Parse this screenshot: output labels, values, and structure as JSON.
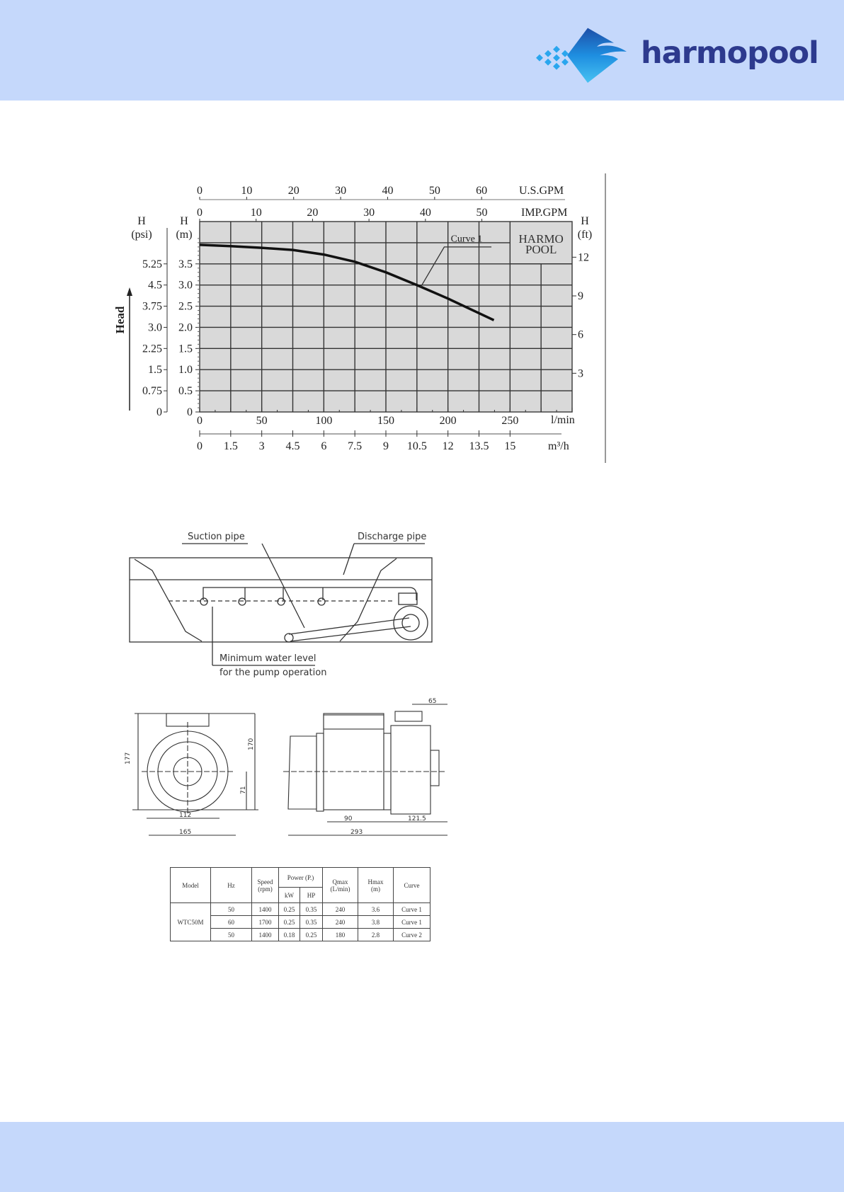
{
  "brand": {
    "name": "harmopool",
    "colors": {
      "header_bg": "#c5d8fb",
      "logo_text": "#2d3a8e",
      "logo_icon": "#1e88e5"
    }
  },
  "chart_data": {
    "type": "line",
    "xlabel": "l/min",
    "xlim": [
      0,
      300
    ],
    "x_ticks": [
      0,
      50,
      100,
      150,
      200,
      250
    ],
    "ylim": [
      0,
      4.5
    ],
    "y_ticks": [
      "0",
      "0.5",
      "1.0",
      "1.5",
      "2.0",
      "2.5",
      "3.0",
      "3.5"
    ],
    "y_tick_values": [
      0,
      0.5,
      1.0,
      1.5,
      2.0,
      2.5,
      3.0,
      3.5
    ],
    "ylabel_m": {
      "line1": "H",
      "line2": "(m)"
    },
    "ylabel_psi": {
      "line1": "H",
      "line2": "(psi)"
    },
    "ylabel_ft": {
      "line1": "H",
      "line2": "(ft)"
    },
    "head_label": "Head",
    "psi_ticks": [
      "0",
      "0.75",
      "1.5",
      "2.25",
      "3.0",
      "3.75",
      "4.5",
      "5.25"
    ],
    "ft_ticks": [
      "3",
      "6",
      "9",
      "12"
    ],
    "ft_tick_values": [
      3,
      6,
      9,
      12
    ],
    "usgpm": {
      "label": "U.S.GPM",
      "ticks": [
        "0",
        "10",
        "20",
        "30",
        "40",
        "50",
        "60"
      ],
      "values": [
        0,
        10,
        20,
        30,
        40,
        50,
        60
      ]
    },
    "impgpm": {
      "label": "IMP.GPM",
      "ticks": [
        "0",
        "10",
        "20",
        "30",
        "40",
        "50"
      ],
      "values": [
        0,
        10,
        20,
        30,
        40,
        50
      ]
    },
    "m3h": {
      "label": "m³/h",
      "ticks": [
        "0",
        "1.5",
        "3",
        "4.5",
        "6",
        "7.5",
        "9",
        "10.5",
        "12",
        "13.5",
        "15"
      ],
      "values": [
        0,
        1.5,
        3,
        4.5,
        6,
        7.5,
        9,
        10.5,
        12,
        13.5,
        15
      ]
    },
    "grid": true,
    "watermark": {
      "line1": "HARMO",
      "line2": "POOL"
    },
    "series": [
      {
        "name": "Curve 1",
        "x": [
          0,
          25,
          50,
          75,
          100,
          125,
          150,
          175,
          200,
          237
        ],
        "y": [
          3.95,
          3.92,
          3.88,
          3.83,
          3.72,
          3.55,
          3.3,
          3.0,
          2.68,
          2.17
        ]
      }
    ]
  },
  "installation": {
    "suction_pipe": "Suction  pipe",
    "discharge_pipe": "Discharge pipe",
    "min_level_1": "Minimum water level",
    "min_level_2": "for the pump operation"
  },
  "dimensions": {
    "d177": "177",
    "d170": "170",
    "d71": "71",
    "d112": "112",
    "d165": "165",
    "d90": "90",
    "d121": "121.5",
    "d293": "293",
    "d65": "65"
  },
  "table": {
    "headers": {
      "model": "Model",
      "hz": "Hz",
      "speed": "Speed",
      "speed_unit": "(rpm)",
      "power": "Power (P.)",
      "kw": "kW",
      "hp": "HP",
      "qmax": "Qmax",
      "qmax_unit": "(L/min)",
      "hmax": "Hmax",
      "hmax_unit": "(m)",
      "curve": "Curve"
    },
    "model": "WTC50M",
    "rows": [
      {
        "hz": "50",
        "speed": "1400",
        "kw": "0.25",
        "hp": "0.35",
        "qmax": "240",
        "hmax": "3.6",
        "curve": "Curve 1"
      },
      {
        "hz": "60",
        "speed": "1700",
        "kw": "0.25",
        "hp": "0.35",
        "qmax": "240",
        "hmax": "3.8",
        "curve": "Curve 1"
      },
      {
        "hz": "50",
        "speed": "1400",
        "kw": "0.18",
        "hp": "0.25",
        "qmax": "180",
        "hmax": "2.8",
        "curve": "Curve 2"
      }
    ]
  }
}
